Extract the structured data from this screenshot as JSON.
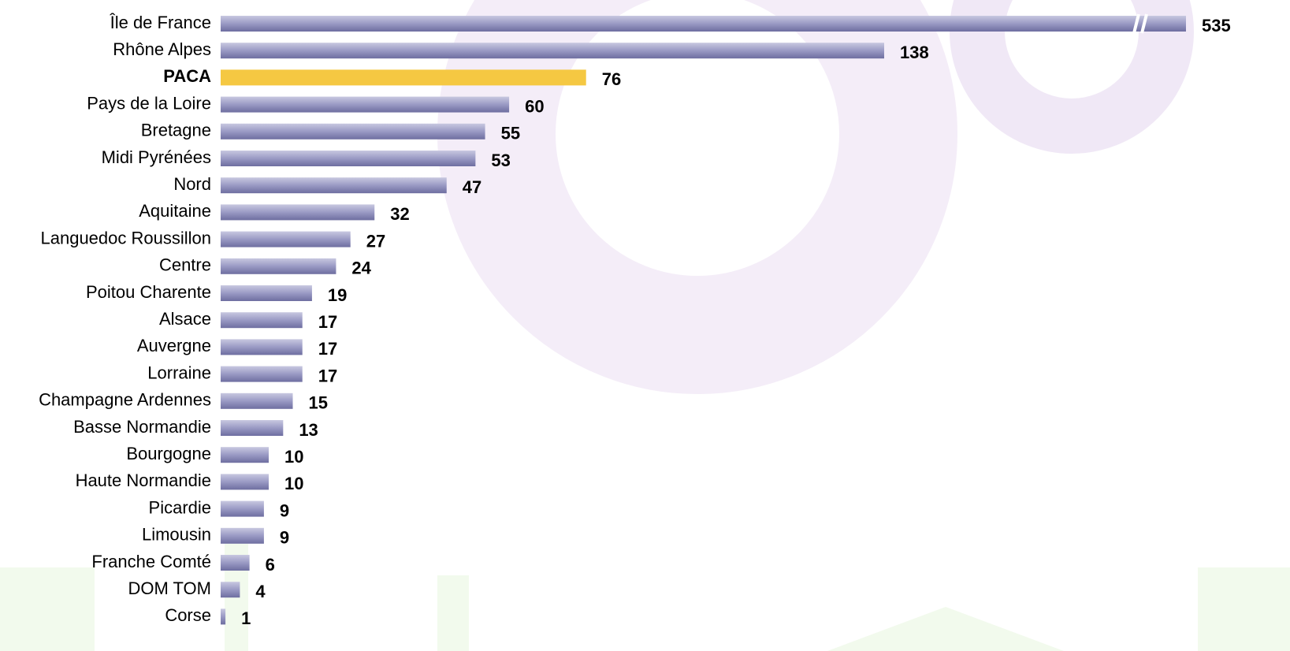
{
  "chart_data": {
    "type": "bar",
    "orientation": "horizontal",
    "categories": [
      "Île de France",
      "Rhône Alpes",
      "PACA",
      "Pays de la Loire",
      "Bretagne",
      "Midi Pyrénées",
      "Nord",
      "Aquitaine",
      "Languedoc Roussillon",
      "Centre",
      "Poitou Charente",
      "Alsace",
      "Auvergne",
      "Lorraine",
      "Champagne Ardennes",
      "Basse Normandie",
      "Bourgogne",
      "Haute Normandie",
      "Picardie",
      "Limousin",
      "Franche Comté",
      "DOM TOM",
      "Corse"
    ],
    "values": [
      535,
      138,
      76,
      60,
      55,
      53,
      47,
      32,
      27,
      24,
      19,
      17,
      17,
      17,
      15,
      13,
      10,
      10,
      9,
      9,
      6,
      4,
      1
    ],
    "colors": [
      "#8c8cbc",
      "#8c8cbc",
      "#f5c842",
      "#8c8cbc",
      "#8c8cbc",
      "#8c8cbc",
      "#8c8cbc",
      "#8c8cbc",
      "#8c8cbc",
      "#8c8cbc",
      "#8c8cbc",
      "#8c8cbc",
      "#8c8cbc",
      "#8c8cbc",
      "#8c8cbc",
      "#8c8cbc",
      "#8c8cbc",
      "#8c8cbc",
      "#8c8cbc",
      "#8c8cbc",
      "#8c8cbc",
      "#8c8cbc",
      "#8c8cbc"
    ]
  }
}
